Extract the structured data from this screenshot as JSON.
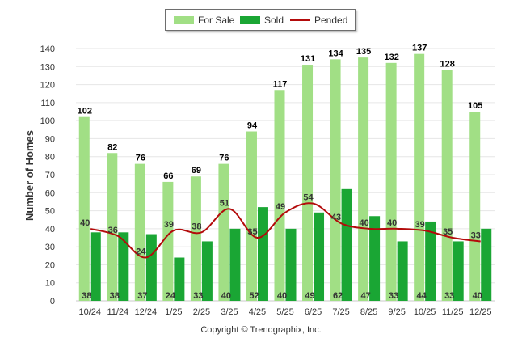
{
  "chart_data": {
    "type": "bar",
    "categories": [
      "10/24",
      "11/24",
      "12/24",
      "1/25",
      "2/25",
      "3/25",
      "4/25",
      "5/25",
      "6/25",
      "7/25",
      "8/25",
      "9/25",
      "10/25",
      "11/25",
      "12/25"
    ],
    "series": [
      {
        "name": "For Sale",
        "type": "bar",
        "color": "#a1df85",
        "values": [
          102,
          82,
          76,
          66,
          69,
          76,
          94,
          117,
          131,
          134,
          135,
          132,
          137,
          128,
          105
        ]
      },
      {
        "name": "Sold",
        "type": "bar",
        "color": "#1aa634",
        "values": [
          38,
          38,
          37,
          24,
          33,
          40,
          52,
          40,
          49,
          62,
          47,
          33,
          44,
          33,
          40
        ]
      },
      {
        "name": "Pended",
        "type": "line",
        "color": "#b30b0b",
        "values": [
          40,
          36,
          24,
          39,
          38,
          51,
          35,
          49,
          54,
          43,
          40,
          40,
          39,
          35,
          33
        ]
      }
    ],
    "ylabel": "Number of Homes",
    "xlabel": "",
    "ylim": [
      0,
      140
    ],
    "yticks": [
      0,
      10,
      20,
      30,
      40,
      50,
      60,
      70,
      80,
      90,
      100,
      110,
      120,
      130,
      140
    ],
    "grid": true,
    "legend": "top-center"
  },
  "footer": {
    "copyright": "Copyright © Trendgraphix, Inc."
  }
}
